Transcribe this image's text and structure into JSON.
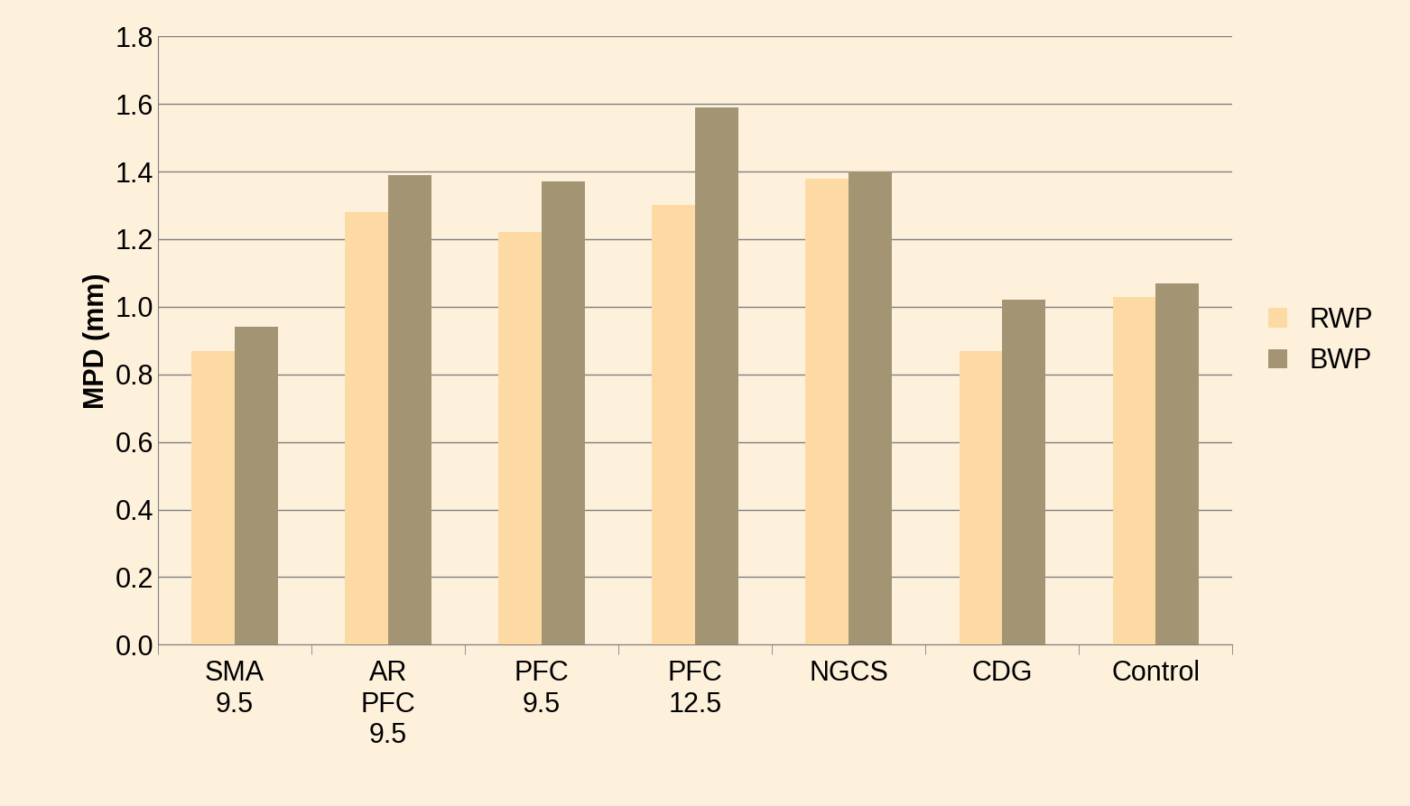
{
  "chart_data": {
    "type": "bar",
    "y_label": "MPD (mm)",
    "categories": [
      "SMA\n9.5",
      "AR\nPFC\n9.5",
      "PFC\n9.5",
      "PFC\n12.5",
      "NGCS",
      "CDG",
      "Control"
    ],
    "series": [
      {
        "name": "RWP",
        "color": "#fdd9a3",
        "values": [
          0.87,
          1.28,
          1.22,
          1.3,
          1.38,
          0.87,
          1.03
        ]
      },
      {
        "name": "BWP",
        "color": "#a39574",
        "values": [
          0.94,
          1.39,
          1.37,
          1.59,
          1.4,
          1.02,
          1.07
        ]
      }
    ],
    "ylim": [
      0,
      1.8
    ],
    "yticks": [
      {
        "value": 0,
        "label": "0.0"
      },
      0.2,
      0.4,
      0.6,
      0.8,
      {
        "value": 1,
        "label": "1.0"
      },
      1.2,
      1.4,
      1.6,
      1.8
    ],
    "grid": true,
    "legend": "right"
  }
}
